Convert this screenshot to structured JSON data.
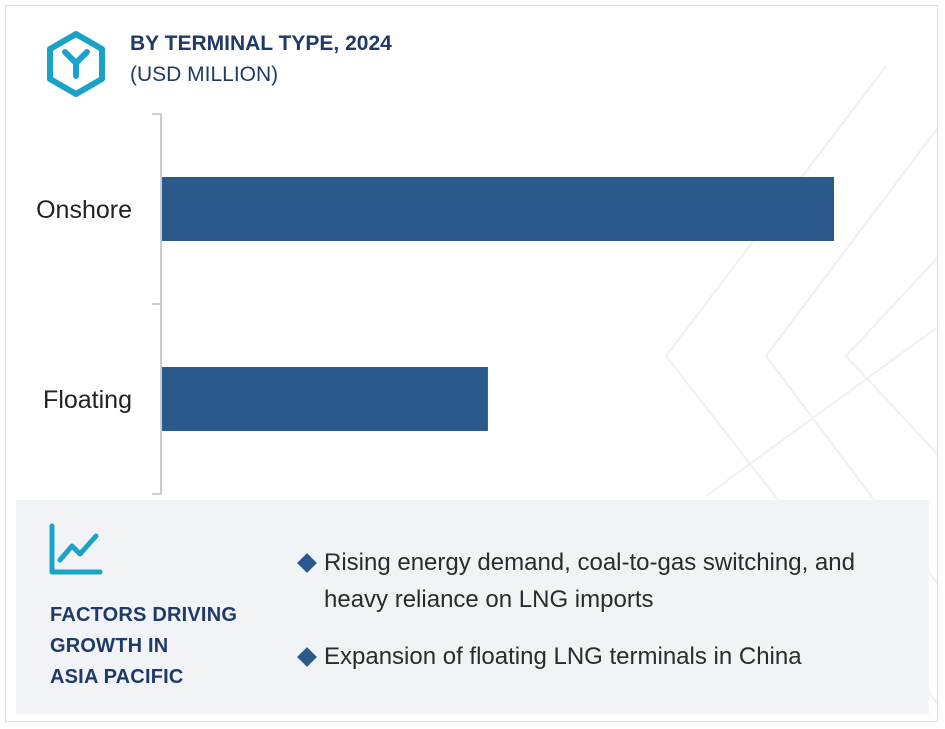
{
  "header": {
    "title": "BY TERMINAL TYPE, 2024",
    "subtitle": "(USD MILLION)"
  },
  "chart_data": {
    "type": "bar",
    "orientation": "horizontal",
    "categories": [
      "Onshore",
      "Floating"
    ],
    "values": [
      100,
      48.5
    ],
    "xlim": [
      0,
      100
    ],
    "grid": false,
    "axis_labels_visible": false,
    "bar_color": "#2a5a8c"
  },
  "factors": {
    "title_lines": [
      "FACTORS DRIVING",
      "GROWTH IN",
      "ASIA PACIFIC"
    ],
    "items": [
      "Rising energy demand, coal-to-gas switching, and heavy reliance on LNG imports",
      "Expansion of floating LNG terminals in China"
    ]
  },
  "colors": {
    "accent": "#1aa3c8",
    "title": "#1f3a66",
    "bar": "#2a5a8c",
    "panel": "#f1f3f7"
  },
  "icons": {
    "logo": "hexagon-y-logo-icon",
    "growth": "line-chart-growth-icon",
    "bullet": "diamond-bullet-icon"
  }
}
